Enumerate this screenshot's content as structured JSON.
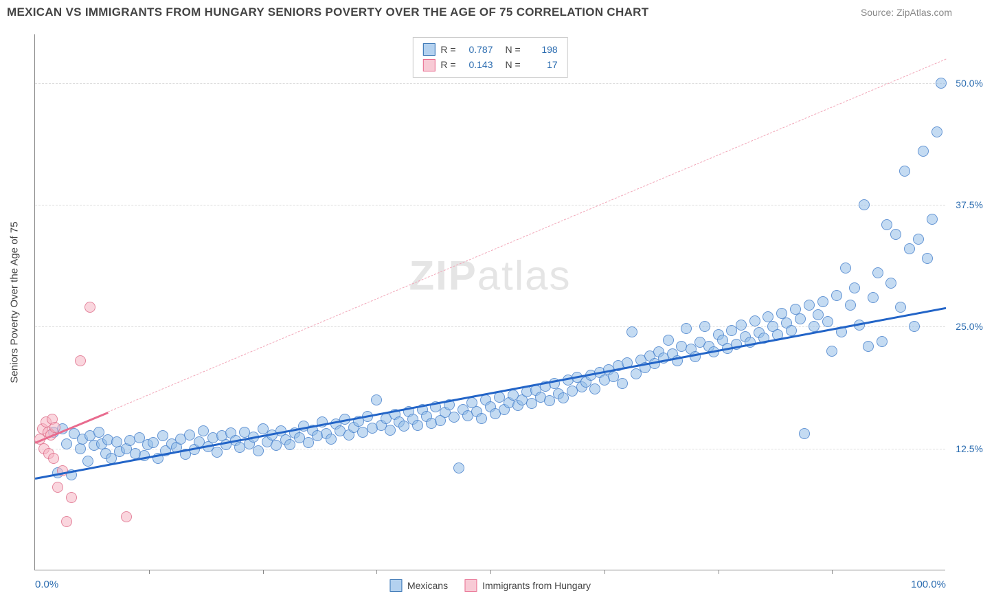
{
  "title": "MEXICAN VS IMMIGRANTS FROM HUNGARY SENIORS POVERTY OVER THE AGE OF 75 CORRELATION CHART",
  "source": "Source: ZipAtlas.com",
  "watermark_a": "ZIP",
  "watermark_b": "atlas",
  "ylabel": "Seniors Poverty Over the Age of 75",
  "chart": {
    "type": "scatter",
    "xlim": [
      0,
      100
    ],
    "ylim": [
      0,
      55
    ],
    "grid_color": "#dddddd",
    "axis_color": "#888888",
    "bg": "#ffffff",
    "yticks": [
      {
        "v": 12.5,
        "label": "12.5%"
      },
      {
        "v": 25.0,
        "label": "25.0%"
      },
      {
        "v": 37.5,
        "label": "37.5%"
      },
      {
        "v": 50.0,
        "label": "50.0%"
      }
    ],
    "xticks_major": [
      0,
      100
    ],
    "xticks_minor": [
      12.5,
      25,
      37.5,
      50,
      62.5,
      75,
      87.5
    ],
    "xlabels": [
      {
        "v": 0,
        "label": "0.0%"
      },
      {
        "v": 100,
        "label": "100.0%"
      }
    ],
    "series": [
      {
        "name": "Mexicans",
        "color_fill": "rgba(147,189,232,0.55)",
        "color_stroke": "rgba(60,120,200,0.7)",
        "marker_radius": 8,
        "R": "0.787",
        "N": "198",
        "trend": {
          "x1": 0,
          "y1": 9.5,
          "x2": 100,
          "y2": 27,
          "color": "#2264c7",
          "width": 2.5
        },
        "points": [
          [
            2,
            14.2
          ],
          [
            2.5,
            10
          ],
          [
            3,
            14.5
          ],
          [
            3.5,
            13
          ],
          [
            4,
            9.8
          ],
          [
            4.3,
            14
          ],
          [
            5,
            12.5
          ],
          [
            5.2,
            13.5
          ],
          [
            5.8,
            11.2
          ],
          [
            6,
            13.8
          ],
          [
            6.5,
            12.8
          ],
          [
            7,
            14.2
          ],
          [
            7.3,
            13
          ],
          [
            7.8,
            12
          ],
          [
            8,
            13.4
          ],
          [
            8.4,
            11.5
          ],
          [
            9,
            13.2
          ],
          [
            9.3,
            12.2
          ],
          [
            10,
            12.5
          ],
          [
            10.4,
            13.3
          ],
          [
            11,
            12
          ],
          [
            11.5,
            13.6
          ],
          [
            12,
            11.8
          ],
          [
            12.4,
            12.9
          ],
          [
            13,
            13.1
          ],
          [
            13.5,
            11.5
          ],
          [
            14,
            13.8
          ],
          [
            14.3,
            12.3
          ],
          [
            15,
            13
          ],
          [
            15.5,
            12.6
          ],
          [
            16,
            13.5
          ],
          [
            16.5,
            11.9
          ],
          [
            17,
            13.9
          ],
          [
            17.5,
            12.4
          ],
          [
            18,
            13.2
          ],
          [
            18.5,
            14.3
          ],
          [
            19,
            12.7
          ],
          [
            19.5,
            13.6
          ],
          [
            20,
            12.1
          ],
          [
            20.5,
            13.8
          ],
          [
            21,
            12.9
          ],
          [
            21.5,
            14.1
          ],
          [
            22,
            13.3
          ],
          [
            22.5,
            12.6
          ],
          [
            23,
            14.2
          ],
          [
            23.5,
            13
          ],
          [
            24,
            13.7
          ],
          [
            24.5,
            12.3
          ],
          [
            25,
            14.5
          ],
          [
            25.5,
            13.2
          ],
          [
            26,
            13.9
          ],
          [
            26.5,
            12.8
          ],
          [
            27,
            14.3
          ],
          [
            27.5,
            13.4
          ],
          [
            28,
            12.9
          ],
          [
            28.5,
            14.1
          ],
          [
            29,
            13.6
          ],
          [
            29.5,
            14.8
          ],
          [
            30,
            13.1
          ],
          [
            30.5,
            14.4
          ],
          [
            31,
            13.8
          ],
          [
            31.5,
            15.2
          ],
          [
            32,
            14
          ],
          [
            32.5,
            13.5
          ],
          [
            33,
            15
          ],
          [
            33.5,
            14.3
          ],
          [
            34,
            15.5
          ],
          [
            34.5,
            13.9
          ],
          [
            35,
            14.7
          ],
          [
            35.5,
            15.3
          ],
          [
            36,
            14.2
          ],
          [
            36.5,
            15.8
          ],
          [
            37,
            14.6
          ],
          [
            37.5,
            17.5
          ],
          [
            38,
            14.9
          ],
          [
            38.5,
            15.6
          ],
          [
            39,
            14.4
          ],
          [
            39.5,
            16
          ],
          [
            40,
            15.2
          ],
          [
            40.5,
            14.8
          ],
          [
            41,
            16.3
          ],
          [
            41.5,
            15.5
          ],
          [
            42,
            14.9
          ],
          [
            42.5,
            16.5
          ],
          [
            43,
            15.8
          ],
          [
            43.5,
            15.1
          ],
          [
            44,
            16.8
          ],
          [
            44.5,
            15.4
          ],
          [
            45,
            16.2
          ],
          [
            45.5,
            17
          ],
          [
            46,
            15.7
          ],
          [
            46.5,
            10.5
          ],
          [
            47,
            16.5
          ],
          [
            47.5,
            15.9
          ],
          [
            48,
            17.2
          ],
          [
            48.5,
            16.3
          ],
          [
            49,
            15.6
          ],
          [
            49.5,
            17.5
          ],
          [
            50,
            16.8
          ],
          [
            50.5,
            16.1
          ],
          [
            51,
            17.8
          ],
          [
            51.5,
            16.5
          ],
          [
            52,
            17.2
          ],
          [
            52.5,
            18
          ],
          [
            53,
            16.9
          ],
          [
            53.5,
            17.5
          ],
          [
            54,
            18.3
          ],
          [
            54.5,
            17.1
          ],
          [
            55,
            18.5
          ],
          [
            55.5,
            17.8
          ],
          [
            56,
            18.9
          ],
          [
            56.5,
            17.4
          ],
          [
            57,
            19.2
          ],
          [
            57.5,
            18.1
          ],
          [
            58,
            17.7
          ],
          [
            58.5,
            19.5
          ],
          [
            59,
            18.4
          ],
          [
            59.5,
            19.8
          ],
          [
            60,
            18.8
          ],
          [
            60.5,
            19.3
          ],
          [
            61,
            20
          ],
          [
            61.5,
            18.6
          ],
          [
            62,
            20.3
          ],
          [
            62.5,
            19.5
          ],
          [
            63,
            20.6
          ],
          [
            63.5,
            19.9
          ],
          [
            64,
            21
          ],
          [
            64.5,
            19.2
          ],
          [
            65,
            21.3
          ],
          [
            65.5,
            24.5
          ],
          [
            66,
            20.2
          ],
          [
            66.5,
            21.6
          ],
          [
            67,
            20.8
          ],
          [
            67.5,
            22
          ],
          [
            68,
            21.2
          ],
          [
            68.5,
            22.4
          ],
          [
            69,
            21.8
          ],
          [
            69.5,
            23.6
          ],
          [
            70,
            22.2
          ],
          [
            70.5,
            21.5
          ],
          [
            71,
            23
          ],
          [
            71.5,
            24.8
          ],
          [
            72,
            22.7
          ],
          [
            72.5,
            21.9
          ],
          [
            73,
            23.4
          ],
          [
            73.5,
            25
          ],
          [
            74,
            23
          ],
          [
            74.5,
            22.4
          ],
          [
            75,
            24.2
          ],
          [
            75.5,
            23.6
          ],
          [
            76,
            22.8
          ],
          [
            76.5,
            24.6
          ],
          [
            77,
            23.2
          ],
          [
            77.5,
            25.2
          ],
          [
            78,
            24
          ],
          [
            78.5,
            23.4
          ],
          [
            79,
            25.6
          ],
          [
            79.5,
            24.4
          ],
          [
            80,
            23.8
          ],
          [
            80.5,
            26
          ],
          [
            81,
            25
          ],
          [
            81.5,
            24.2
          ],
          [
            82,
            26.4
          ],
          [
            82.5,
            25.4
          ],
          [
            83,
            24.6
          ],
          [
            83.5,
            26.8
          ],
          [
            84,
            25.8
          ],
          [
            84.5,
            14
          ],
          [
            85,
            27.2
          ],
          [
            85.5,
            25
          ],
          [
            86,
            26.2
          ],
          [
            86.5,
            27.6
          ],
          [
            87,
            25.5
          ],
          [
            87.5,
            22.5
          ],
          [
            88,
            28.2
          ],
          [
            88.5,
            24.5
          ],
          [
            89,
            31
          ],
          [
            89.5,
            27.2
          ],
          [
            90,
            29
          ],
          [
            90.5,
            25.2
          ],
          [
            91,
            37.5
          ],
          [
            91.5,
            23
          ],
          [
            92,
            28
          ],
          [
            92.5,
            30.5
          ],
          [
            93,
            23.5
          ],
          [
            93.5,
            35.5
          ],
          [
            94,
            29.5
          ],
          [
            94.5,
            34.5
          ],
          [
            95,
            27
          ],
          [
            95.5,
            41
          ],
          [
            96,
            33
          ],
          [
            96.5,
            25
          ],
          [
            97,
            34
          ],
          [
            97.5,
            43
          ],
          [
            98,
            32
          ],
          [
            98.5,
            36
          ],
          [
            99,
            45
          ],
          [
            99.5,
            50
          ]
        ]
      },
      {
        "name": "Immigrants from Hungary",
        "color_fill": "rgba(245,180,195,0.55)",
        "color_stroke": "rgba(220,100,130,0.7)",
        "marker_radius": 8,
        "R": "0.143",
        "N": "17",
        "trend": {
          "x1": 0,
          "y1": 13.2,
          "x2": 8,
          "y2": 16.3,
          "color": "#e86b8e",
          "width": 2.5
        },
        "trend_extend": {
          "x1": 8,
          "y1": 16.3,
          "x2": 100,
          "y2": 52.5,
          "color": "#f2a6b8"
        },
        "points": [
          [
            0.5,
            13.5
          ],
          [
            0.8,
            14.5
          ],
          [
            1,
            12.5
          ],
          [
            1.2,
            15.2
          ],
          [
            1.4,
            14.2
          ],
          [
            1.5,
            12
          ],
          [
            1.7,
            13.9
          ],
          [
            1.9,
            15.5
          ],
          [
            2,
            11.5
          ],
          [
            2.2,
            14.7
          ],
          [
            2.5,
            8.5
          ],
          [
            3,
            10.2
          ],
          [
            3.5,
            5
          ],
          [
            4,
            7.5
          ],
          [
            5,
            21.5
          ],
          [
            6,
            27
          ],
          [
            10,
            5.5
          ]
        ]
      }
    ]
  },
  "legend_bottom": [
    {
      "swatch": "blue",
      "label": "Mexicans"
    },
    {
      "swatch": "pink",
      "label": "Immigrants from Hungary"
    }
  ],
  "corr_legend_labels": {
    "R": "R =",
    "N": "N ="
  }
}
